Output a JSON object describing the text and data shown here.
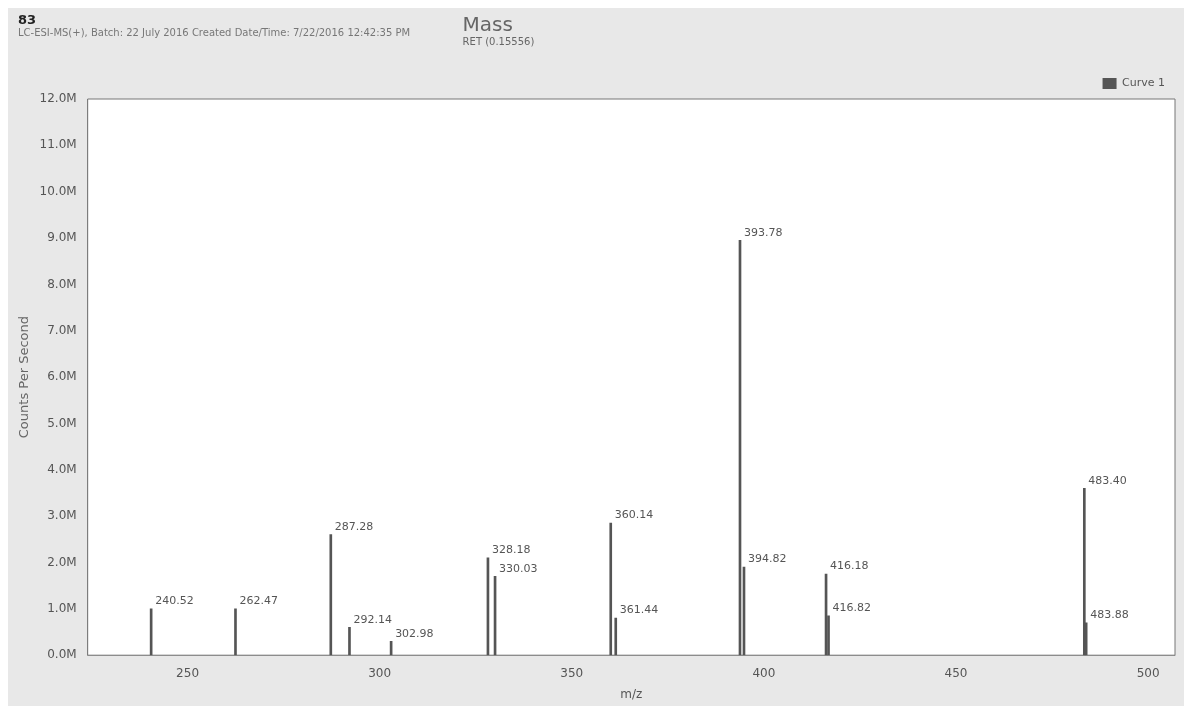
{
  "chart_data": {
    "type": "bar",
    "title": "Mass",
    "subtitle": "RET (0.15556)",
    "xlabel": "m/z",
    "ylabel": "Counts Per Second",
    "annotations": [
      "83",
      "LC-ESI-MS(+), Batch: 22 July 2016 Created Date/Time: 7/22/2016 12:42:35 PM",
      {
        "text": "240.52",
        "x": 240.52,
        "y": 1.0
      },
      {
        "text": "262.47",
        "x": 262.47,
        "y": 1.0
      },
      {
        "text": "287.28",
        "x": 287.28,
        "y": 2.6
      },
      {
        "text": "292.14",
        "x": 292.14,
        "y": 0.6
      },
      {
        "text": "302.98",
        "x": 302.98,
        "y": 0.3
      },
      {
        "text": "328.18",
        "x": 328.18,
        "y": 2.1
      },
      {
        "text": "330.03",
        "x": 330.03,
        "y": 1.7
      },
      {
        "text": "360.14",
        "x": 360.14,
        "y": 2.85
      },
      {
        "text": "361.44",
        "x": 361.44,
        "y": 0.8
      },
      {
        "text": "393.78",
        "x": 393.78,
        "y": 8.95
      },
      {
        "text": "394.82",
        "x": 394.82,
        "y": 1.9
      },
      {
        "text": "416.18",
        "x": 416.18,
        "y": 1.75
      },
      {
        "text": "416.82",
        "x": 416.82,
        "y": 0.85
      },
      {
        "text": "483.40",
        "x": 483.4,
        "y": 3.6
      },
      {
        "text": "483.88",
        "x": 483.88,
        "y": 0.7
      }
    ],
    "x": [
      240.52,
      262.47,
      287.28,
      292.14,
      302.98,
      328.18,
      330.03,
      360.14,
      361.44,
      393.78,
      394.82,
      416.18,
      416.82,
      483.4,
      483.88
    ],
    "series": [
      {
        "name": "Curve 1",
        "color": "#555555",
        "values": [
          1.0,
          1.0,
          2.6,
          0.6,
          0.3,
          2.1,
          1.7,
          2.85,
          0.8,
          8.95,
          1.9,
          1.75,
          0.85,
          3.6,
          0.7
        ]
      }
    ],
    "xlim": [
      224,
      507
    ],
    "xticks": [
      250,
      300,
      350,
      400,
      450,
      500
    ],
    "ylim": [
      0,
      12
    ],
    "yticks": [
      {
        "value": 0,
        "label": "0.0M"
      },
      {
        "value": 1,
        "label": "1.0M"
      },
      {
        "value": 2,
        "label": "2.0M"
      },
      {
        "value": 3,
        "label": "3.0M"
      },
      {
        "value": 4,
        "label": "4.0M"
      },
      {
        "value": 5,
        "label": "5.0M"
      },
      {
        "value": 6,
        "label": "6.0M"
      },
      {
        "value": 7,
        "label": "7.0M"
      },
      {
        "value": 8,
        "label": "8.0M"
      },
      {
        "value": 9,
        "label": "9.0M"
      },
      {
        "value": 10,
        "label": "10.0M"
      },
      {
        "value": 11,
        "label": "11.0M"
      },
      {
        "value": 12,
        "label": "12.0M"
      }
    ],
    "grid": false,
    "legend": "top right"
  }
}
